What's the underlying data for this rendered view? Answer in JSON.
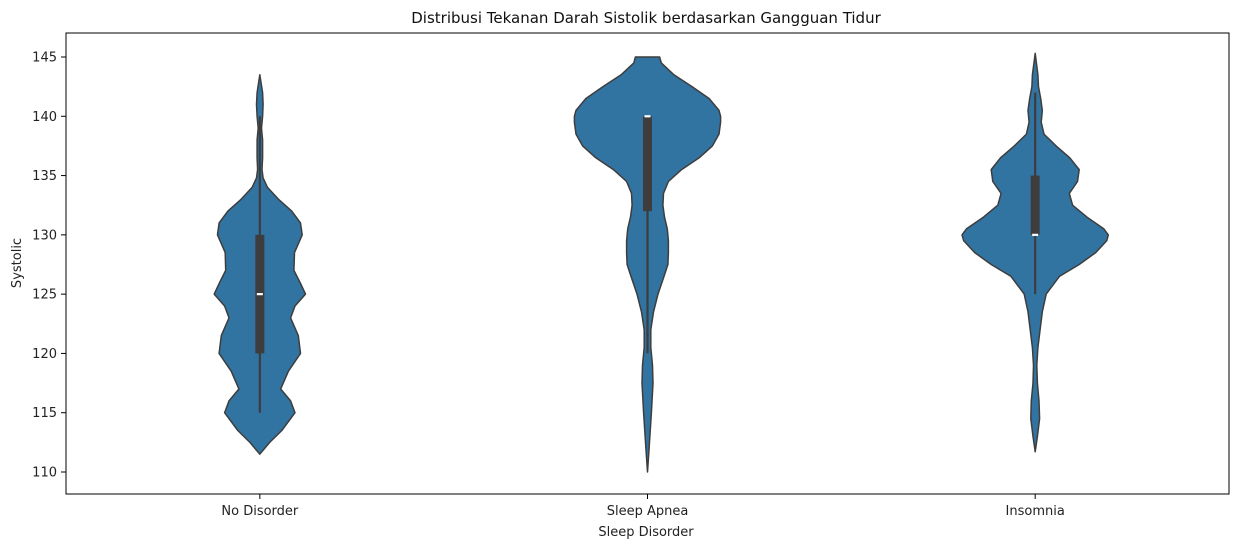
{
  "chart_data": {
    "type": "violin",
    "title": "Distribusi Tekanan Darah Sistolik berdasarkan Gangguan Tidur",
    "xlabel": "Sleep Disorder",
    "ylabel": "Systolic",
    "ylim": [
      110,
      145
    ],
    "yticks": [
      110,
      115,
      120,
      125,
      130,
      135,
      140,
      145
    ],
    "grid": false,
    "legend": "none",
    "color": "#3274a1",
    "categories": [
      "No Disorder",
      "Sleep Apnea",
      "Insomnia"
    ],
    "violins": [
      {
        "category": "No Disorder",
        "min": 115,
        "q1": 120,
        "median": 125,
        "q3": 130,
        "max": 140,
        "density_y": [
          111.5,
          112.5,
          113.5,
          115,
          116,
          117,
          118.5,
          120,
          121.5,
          123,
          124,
          125,
          126,
          127,
          128.5,
          130,
          131,
          132,
          133,
          134,
          134.8,
          135.5,
          136.5,
          138,
          139,
          140,
          141,
          142,
          143.5
        ],
        "density_halfwidth": [
          0,
          0.18,
          0.4,
          0.64,
          0.56,
          0.38,
          0.52,
          0.74,
          0.7,
          0.56,
          0.64,
          0.83,
          0.73,
          0.62,
          0.63,
          0.77,
          0.74,
          0.58,
          0.34,
          0.14,
          0.06,
          0.04,
          0.05,
          0.05,
          0.03,
          0.05,
          0.06,
          0.05,
          0
        ]
      },
      {
        "category": "Sleep Apnea",
        "min": 120,
        "q1": 132,
        "median": 140,
        "q3": 140,
        "max": 140,
        "density_y": [
          110,
          112,
          115,
          117.5,
          119,
          120.5,
          122,
          123.5,
          125,
          126.5,
          127.5,
          128.5,
          129.5,
          130.5,
          131.5,
          132.5,
          133.5,
          134.5,
          135.5,
          136.5,
          137.5,
          138.5,
          139.5,
          140,
          140.5,
          141.5,
          142.5,
          143.5,
          144.5,
          145
        ],
        "density_halfwidth": [
          0,
          0.03,
          0.07,
          0.1,
          0.09,
          0.06,
          0.06,
          0.11,
          0.19,
          0.3,
          0.37,
          0.38,
          0.38,
          0.36,
          0.31,
          0.28,
          0.29,
          0.38,
          0.62,
          0.94,
          1.18,
          1.3,
          1.33,
          1.33,
          1.3,
          1.12,
          0.81,
          0.48,
          0.25,
          0.22
        ]
      },
      {
        "category": "Insomnia",
        "min": 125,
        "q1": 130,
        "median": 130,
        "q3": 135,
        "max": 142,
        "density_y": [
          111.7,
          113,
          114.5,
          116,
          117.5,
          119,
          120.5,
          122,
          123.5,
          125,
          126.5,
          127.5,
          128.5,
          129.5,
          130,
          130.5,
          131.5,
          132.5,
          133.5,
          134.5,
          135.5,
          136.5,
          137.5,
          138.5,
          139.5,
          140.5,
          141.5,
          142.5,
          143.5,
          145.3
        ],
        "density_halfwidth": [
          0,
          0.04,
          0.08,
          0.07,
          0.04,
          0.03,
          0.05,
          0.09,
          0.13,
          0.2,
          0.44,
          0.8,
          1.1,
          1.3,
          1.33,
          1.25,
          0.94,
          0.68,
          0.62,
          0.77,
          0.8,
          0.63,
          0.38,
          0.16,
          0.11,
          0.13,
          0.1,
          0.06,
          0.05,
          0
        ]
      }
    ]
  }
}
